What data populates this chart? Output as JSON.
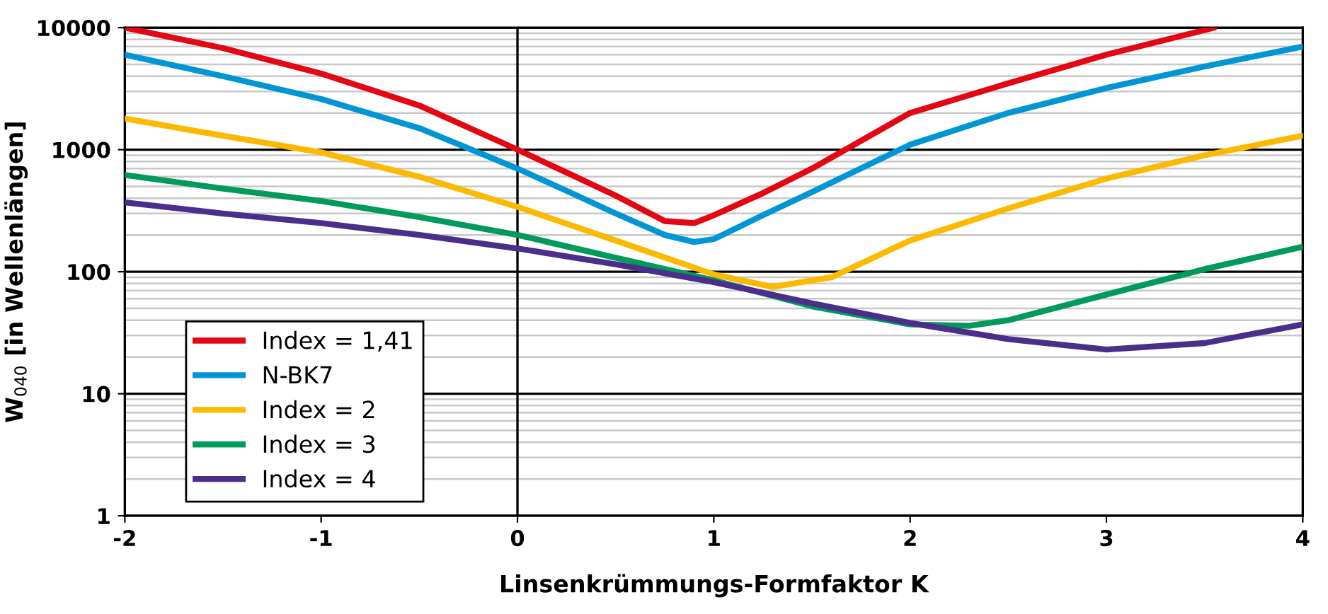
{
  "chart_data": {
    "type": "line",
    "xlabel": "Linsenkrümmungs-Formfaktor K",
    "ylabel": "W$_{040}$ [in Wellenlängen]",
    "log": "y",
    "xlim": [
      -2,
      4
    ],
    "ylim": [
      1,
      10000
    ],
    "xticks": [
      -2,
      -1,
      0,
      1,
      2,
      3,
      4
    ],
    "yticks": [
      1,
      10,
      100,
      1000,
      10000
    ],
    "grid": "y",
    "legend": "bottom left",
    "marker": "none",
    "line_style": "solid",
    "ref_lines": [
      {
        "axis": "x",
        "value": 0,
        "color": "#000000"
      }
    ],
    "series": [
      {
        "name": "Index = 1,41",
        "color": "#e30613",
        "x": [
          -2,
          -1.5,
          -1,
          -0.5,
          0,
          0.25,
          0.5,
          0.75,
          0.9,
          1,
          1.25,
          1.5,
          2,
          2.5,
          3,
          3.55
        ],
        "values": [
          10000,
          6800,
          4200,
          2300,
          1000,
          650,
          420,
          260,
          250,
          290,
          440,
          700,
          2000,
          3500,
          6000,
          10000
        ]
      },
      {
        "name": "N-BK7",
        "color": "#0096d6",
        "x": [
          -2,
          -1.5,
          -1,
          -0.5,
          0,
          0.25,
          0.5,
          0.75,
          0.9,
          1,
          1.25,
          1.5,
          2,
          2.5,
          3,
          3.5,
          4
        ],
        "values": [
          6000,
          4000,
          2600,
          1500,
          700,
          460,
          300,
          200,
          175,
          185,
          290,
          450,
          1100,
          2000,
          3200,
          4800,
          7000
        ]
      },
      {
        "name": "Index = 2",
        "color": "#fbb900",
        "x": [
          -2,
          -1.5,
          -1,
          -0.5,
          0,
          0.5,
          1,
          1.3,
          1.6,
          2,
          2.5,
          3,
          3.5,
          4
        ],
        "values": [
          1800,
          1300,
          950,
          600,
          340,
          180,
          95,
          75,
          90,
          180,
          330,
          580,
          900,
          1300
        ]
      },
      {
        "name": "Index = 3",
        "color": "#009a5a",
        "x": [
          -2,
          -1.5,
          -1,
          -0.5,
          0,
          0.5,
          1,
          1.5,
          2,
          2.3,
          2.5,
          3,
          3.5,
          4
        ],
        "values": [
          620,
          480,
          380,
          280,
          200,
          130,
          85,
          52,
          37,
          36,
          40,
          65,
          105,
          160
        ]
      },
      {
        "name": "Index = 4",
        "color": "#4b2d8c",
        "x": [
          -2,
          -1.5,
          -1,
          -0.5,
          0,
          0.5,
          1,
          1.5,
          2,
          2.5,
          3,
          3.5,
          4
        ],
        "values": [
          370,
          300,
          250,
          200,
          155,
          115,
          82,
          55,
          38,
          28,
          23,
          26,
          37
        ]
      }
    ]
  }
}
